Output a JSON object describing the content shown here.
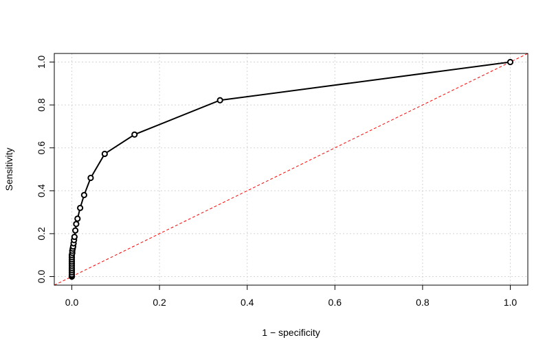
{
  "chart_data": {
    "type": "line",
    "title": "",
    "xlabel": "1 − specificity",
    "ylabel": "Sensitivity",
    "xlim": [
      -0.04,
      1.04
    ],
    "ylim": [
      -0.04,
      1.04
    ],
    "xticks": [
      0.0,
      0.2,
      0.4,
      0.6,
      0.8,
      1.0
    ],
    "yticks": [
      0.0,
      0.2,
      0.4,
      0.6,
      0.8,
      1.0
    ],
    "xtick_labels": [
      "0.0",
      "0.2",
      "0.4",
      "0.6",
      "0.8",
      "1.0"
    ],
    "ytick_labels": [
      "0.0",
      "0.2",
      "0.4",
      "0.6",
      "0.8",
      "1.0"
    ],
    "grid": true,
    "legend": "none",
    "series": [
      {
        "color": "#000000",
        "marker": "open-circle",
        "x": [
          0.0,
          0.0,
          0.0,
          0.0,
          0.0,
          0.0,
          0.0,
          0.0,
          0.0,
          0.0,
          0.0,
          0.0,
          0.001,
          0.001,
          0.002,
          0.003,
          0.004,
          0.005,
          0.006,
          0.008,
          0.01,
          0.013,
          0.019,
          0.028,
          0.043,
          0.075,
          0.143,
          0.338,
          1.0
        ],
        "y": [
          0.0,
          0.005,
          0.01,
          0.02,
          0.03,
          0.04,
          0.05,
          0.06,
          0.07,
          0.08,
          0.09,
          0.1,
          0.11,
          0.12,
          0.13,
          0.14,
          0.155,
          0.17,
          0.185,
          0.215,
          0.245,
          0.27,
          0.32,
          0.38,
          0.46,
          0.572,
          0.662,
          0.822,
          1.0
        ]
      }
    ],
    "reference_line": {
      "type": "diagonal",
      "from": [
        0,
        0
      ],
      "to": [
        1,
        1
      ],
      "color": "#ff0000",
      "style": "dashed"
    }
  }
}
